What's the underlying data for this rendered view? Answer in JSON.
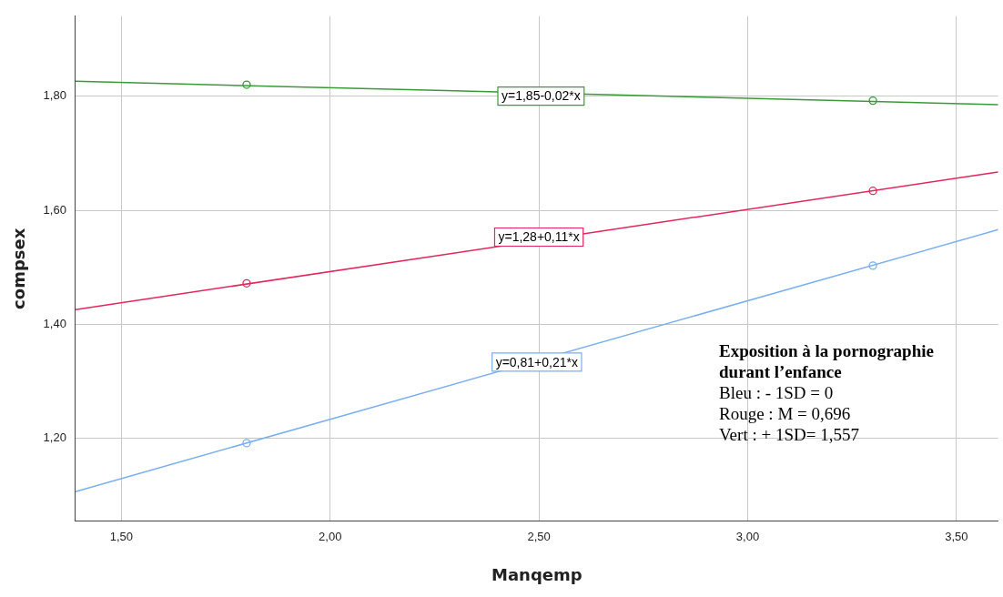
{
  "chart_data": {
    "type": "line",
    "xlabel": "Manqemp",
    "ylabel": "compsex",
    "xlim": [
      1.39,
      3.6
    ],
    "xticks": [
      {
        "value": 1.5,
        "label": "1,50"
      },
      {
        "value": 2,
        "label": "2,00"
      },
      {
        "value": 2.5,
        "label": "2,50"
      },
      {
        "value": 3,
        "label": "3,00"
      },
      {
        "value": 3.5,
        "label": "3,50"
      }
    ],
    "ylim": [
      1.055,
      1.94
    ],
    "yticks": [
      {
        "value": 1.2,
        "label": "1,20"
      },
      {
        "value": 1.4,
        "label": "1,40"
      },
      {
        "value": 1.6,
        "label": "1,60"
      },
      {
        "value": 1.8,
        "label": "1,80"
      }
    ],
    "grid": true,
    "legend": false,
    "series": [
      {
        "type": "line",
        "marker": "none",
        "color": "#3a9a3a",
        "x": [
          1.39,
          3.6
        ],
        "values": [
          1.826,
          1.785
        ]
      },
      {
        "type": "line",
        "marker": "none",
        "color": "#e3265c",
        "x": [
          1.39,
          3.6
        ],
        "values": [
          1.426,
          1.667
        ]
      },
      {
        "type": "line",
        "marker": "none",
        "color": "#7aaff0",
        "x": [
          1.39,
          3.6
        ],
        "values": [
          1.107,
          1.566
        ]
      },
      {
        "type": "scatter",
        "marker": "circle",
        "color": "#3a9a3a",
        "x": [
          1.8,
          3.3
        ],
        "values": [
          1.82,
          1.792
        ]
      },
      {
        "type": "scatter",
        "marker": "circle",
        "color": "#e3265c",
        "x": [
          1.8,
          3.3
        ],
        "values": [
          1.472,
          1.634
        ]
      },
      {
        "type": "scatter",
        "marker": "circle",
        "color": "#7aaff0",
        "x": [
          1.8,
          3.3
        ],
        "values": [
          1.192,
          1.503
        ]
      }
    ],
    "annotations": [
      {
        "text": "y=1,85-0,02*x",
        "x": 2.505,
        "y": 1.8
      },
      {
        "text": "y=1,28+0,11*x",
        "x": 2.5,
        "y": 1.553
      },
      {
        "text": "y=0,81+0,21*x",
        "x": 2.495,
        "y": 1.334
      },
      "Exposition à la pornographie durant l’enfance",
      "Bleu : - 1SD = 0",
      "Rouge : M = 0,696",
      "Vert : + 1SD= 1,557"
    ]
  }
}
